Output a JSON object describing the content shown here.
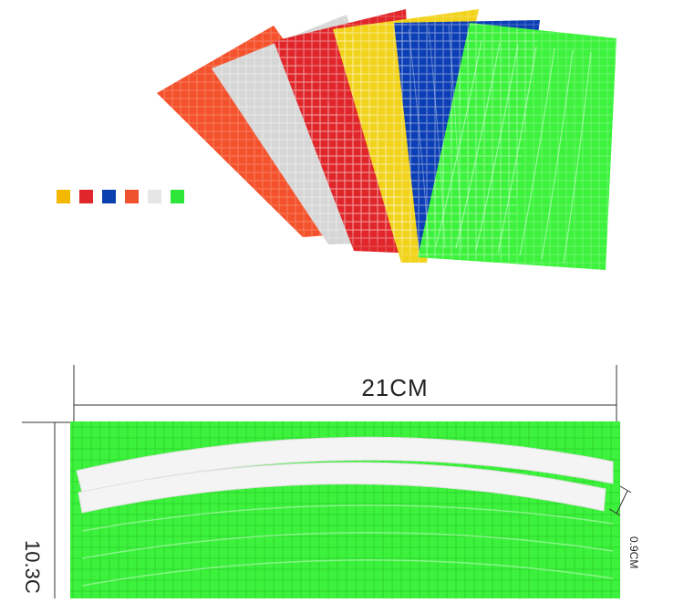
{
  "swatches": [
    {
      "name": "yellow",
      "color": "#f5b800"
    },
    {
      "name": "red",
      "color": "#e0262a"
    },
    {
      "name": "blue",
      "color": "#0a3fb0"
    },
    {
      "name": "orange-red",
      "color": "#f0512e"
    },
    {
      "name": "white",
      "color": "#e6e6e6"
    },
    {
      "name": "green",
      "color": "#2ee63a"
    }
  ],
  "sheets": [
    {
      "name": "orange-sheet",
      "color": "#f4522c"
    },
    {
      "name": "silver-sheet",
      "color": "#d6d6d6"
    },
    {
      "name": "red-sheet",
      "color": "#e0262a"
    },
    {
      "name": "yellow-sheet",
      "color": "#f2d31c"
    },
    {
      "name": "blue-sheet",
      "color": "#0c3fb5"
    },
    {
      "name": "green-sheet",
      "color": "#3cf23c"
    }
  ],
  "dimensions": {
    "width": "21CM",
    "height": "10.3C",
    "strip_gap": "0.9CM"
  }
}
